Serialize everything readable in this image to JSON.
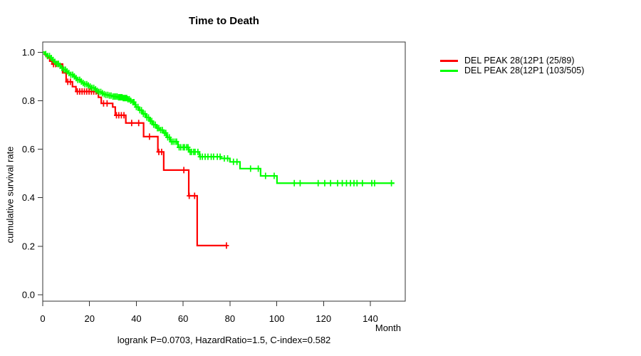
{
  "title": "Time to Death",
  "footer": "logrank P=0.0703, HazardRatio=1.5, C-index=0.582",
  "x_axis": {
    "label": "Month",
    "tick_labels": [
      "0",
      "20",
      "40",
      "60",
      "80",
      "100",
      "120",
      "140"
    ],
    "tick_values": [
      0,
      20,
      40,
      60,
      80,
      100,
      120,
      140
    ]
  },
  "y_axis": {
    "label": "cumulative survival rate",
    "tick_labels": [
      "0.0",
      "0.2",
      "0.4",
      "0.6",
      "0.8",
      "1.0"
    ],
    "tick_values": [
      0,
      0.2,
      0.4,
      0.6,
      0.8,
      1.0
    ]
  },
  "legend": {
    "position": "right-outside-top",
    "entries": [
      {
        "label": "DEL PEAK 28(12P1 (25/89)",
        "color": "#ff0000"
      },
      {
        "label": "DEL PEAK 28(12P1 (103/505)",
        "color": "#00ff00"
      }
    ]
  },
  "chart_data": {
    "type": "line",
    "subtype": "kaplan-meier-step",
    "title": "Time to Death",
    "xlabel": "Month",
    "ylabel": "cumulative survival rate",
    "xlim": [
      0,
      155
    ],
    "ylim": [
      0,
      1.04
    ],
    "grid": false,
    "annotation": "logrank P=0.0703, HazardRatio=1.5, C-index=0.582",
    "series": [
      {
        "name": "DEL PEAK 28(12P1 (25/89)",
        "events": "25/89",
        "color": "#ff0000",
        "steps": [
          [
            0,
            1.0
          ],
          [
            1,
            0.989
          ],
          [
            2,
            0.977
          ],
          [
            3,
            0.963
          ],
          [
            4,
            0.951
          ],
          [
            8.5,
            0.915
          ],
          [
            10,
            0.878
          ],
          [
            12.7,
            0.858
          ],
          [
            14.2,
            0.838
          ],
          [
            23.8,
            0.814
          ],
          [
            25,
            0.789
          ],
          [
            29.9,
            0.774
          ],
          [
            31,
            0.74
          ],
          [
            35.5,
            0.708
          ],
          [
            43.1,
            0.652
          ],
          [
            49.2,
            0.589
          ],
          [
            51.7,
            0.514
          ],
          [
            62.4,
            0.408
          ],
          [
            66,
            0.203
          ],
          [
            78.8,
            0.203
          ]
        ],
        "censor_times": [
          4.6,
          5.5,
          6.6,
          10.7,
          11.8,
          14.8,
          15.8,
          16.8,
          17.8,
          18.8,
          19.8,
          20.8,
          21.8,
          22.8,
          26,
          27.5,
          31.5,
          32.5,
          33.6,
          34.7,
          38,
          41,
          45.6,
          49.6,
          50.8,
          60.3,
          62.6,
          64.9,
          78.5
        ]
      },
      {
        "name": "DEL PEAK 28(12P1 (103/505)",
        "events": "103/505",
        "color": "#00ff00",
        "steps": [
          [
            0,
            1.0
          ],
          [
            1,
            0.992
          ],
          [
            2,
            0.984
          ],
          [
            3,
            0.976
          ],
          [
            4,
            0.968
          ],
          [
            5,
            0.96
          ],
          [
            6,
            0.952
          ],
          [
            7,
            0.944
          ],
          [
            8,
            0.935
          ],
          [
            9,
            0.928
          ],
          [
            10,
            0.921
          ],
          [
            11,
            0.914
          ],
          [
            12,
            0.907
          ],
          [
            13,
            0.9
          ],
          [
            14,
            0.893
          ],
          [
            15,
            0.886
          ],
          [
            16,
            0.879
          ],
          [
            17,
            0.873
          ],
          [
            18,
            0.868
          ],
          [
            19,
            0.863
          ],
          [
            20,
            0.858
          ],
          [
            21,
            0.853
          ],
          [
            22,
            0.847
          ],
          [
            23,
            0.841
          ],
          [
            24,
            0.836
          ],
          [
            25,
            0.831
          ],
          [
            26,
            0.827
          ],
          [
            27,
            0.824
          ],
          [
            28,
            0.821
          ],
          [
            30,
            0.817
          ],
          [
            32,
            0.814
          ],
          [
            34,
            0.811
          ],
          [
            36,
            0.806
          ],
          [
            37.2,
            0.8
          ],
          [
            38,
            0.794
          ],
          [
            39.6,
            0.774
          ],
          [
            41,
            0.761
          ],
          [
            42.6,
            0.746
          ],
          [
            44,
            0.731
          ],
          [
            45.6,
            0.716
          ],
          [
            47,
            0.701
          ],
          [
            48.7,
            0.687
          ],
          [
            50,
            0.679
          ],
          [
            51.7,
            0.667
          ],
          [
            53,
            0.649
          ],
          [
            54.5,
            0.631
          ],
          [
            57.8,
            0.608
          ],
          [
            62.4,
            0.589
          ],
          [
            67,
            0.569
          ],
          [
            76,
            0.562
          ],
          [
            80,
            0.548
          ],
          [
            84.3,
            0.52
          ],
          [
            93.1,
            0.49
          ],
          [
            100.1,
            0.46
          ],
          [
            150.3,
            0.46
          ]
        ],
        "censor_times": [
          1.3,
          2.1,
          2.9,
          3.7,
          4.4,
          5.2,
          6,
          6.7,
          7.4,
          8.2,
          9,
          9.7,
          10.4,
          11.2,
          12,
          12.8,
          13.5,
          14.3,
          15,
          15.8,
          16.5,
          17.3,
          18,
          18.8,
          19.5,
          20.3,
          21,
          21.8,
          22.6,
          23.3,
          24,
          24.8,
          25.5,
          26.3,
          27,
          27.8,
          28.5,
          29.2,
          30,
          30.6,
          31.2,
          31.8,
          32.4,
          32.9,
          33.4,
          33.9,
          34.4,
          34.9,
          35.4,
          35.9,
          36.4,
          37,
          37.6,
          38.5,
          39,
          40,
          40.7,
          41.5,
          42.2,
          43,
          43.7,
          44.5,
          45.2,
          46,
          46.6,
          47.4,
          48.1,
          49,
          49.6,
          50.4,
          51.1,
          52,
          52.6,
          53.4,
          54.1,
          55,
          55.7,
          56.5,
          57.2,
          58.3,
          59,
          60,
          60.6,
          61.5,
          62.1,
          63,
          63.6,
          64.5,
          65.1,
          66.3,
          67.3,
          68.2,
          69.4,
          70.6,
          72,
          73,
          74.6,
          75.8,
          77.6,
          79,
          81.5,
          83,
          88.8,
          92.1,
          95.2,
          98.9,
          107.5,
          110,
          117.7,
          120.5,
          123,
          126,
          128,
          129.8,
          131.5,
          133,
          134.3,
          136.6,
          140.6,
          141.8,
          149
        ]
      }
    ]
  }
}
